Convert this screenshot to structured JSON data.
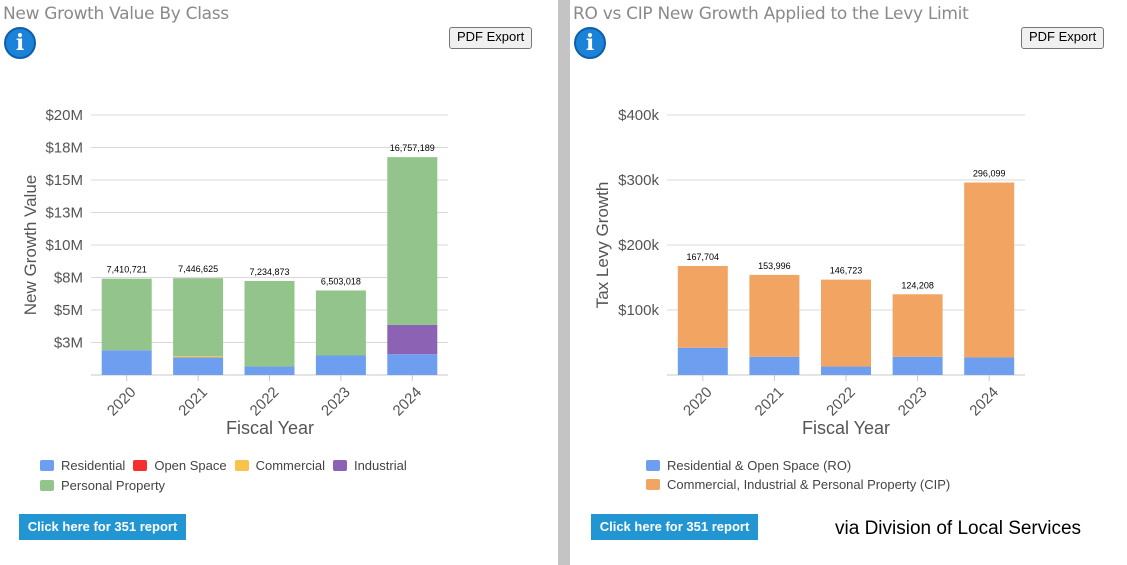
{
  "colors": {
    "residential": "#6e9ef0",
    "open_space": "#f72e2e",
    "commercial": "#f7c34a",
    "industrial": "#8c62b5",
    "personal_property": "#93c48c",
    "ro": "#6e9ef0",
    "cip": "#f2a462",
    "button": "#2196d3"
  },
  "left": {
    "title": "New Growth Value By Class",
    "pdf_label": "PDF Export",
    "report_label": "Click here for 351 report"
  },
  "right": {
    "title": "RO vs CIP New Growth Applied to the Levy Limit",
    "pdf_label": "PDF Export",
    "report_label": "Click here for 351 report"
  },
  "credit": "via Division of Local Services",
  "chart_data": [
    {
      "type": "bar",
      "stacked": true,
      "title": "New Growth Value By Class",
      "xlabel": "Fiscal Year",
      "ylabel": "New Growth Value",
      "ylim": [
        0,
        20000000
      ],
      "yticks": [
        0,
        2500000,
        5000000,
        7500000,
        10000000,
        12500000,
        15000000,
        17500000,
        20000000
      ],
      "ytick_labels": [
        "",
        "$3M",
        "$5M",
        "$8M",
        "$10M",
        "$13M",
        "$15M",
        "$18M",
        "$20M"
      ],
      "categories": [
        "2020",
        "2021",
        "2022",
        "2023",
        "2024"
      ],
      "totals": [
        "7,410,721",
        "7,446,625",
        "7,234,873",
        "6,503,018",
        "16,757,189"
      ],
      "series": [
        {
          "name": "Residential",
          "color_key": "residential",
          "values": [
            1900000,
            1350000,
            650000,
            1500000,
            1600000
          ]
        },
        {
          "name": "Open Space",
          "color_key": "open_space",
          "values": [
            0,
            0,
            0,
            0,
            0
          ]
        },
        {
          "name": "Commercial",
          "color_key": "commercial",
          "values": [
            0,
            100000,
            0,
            0,
            0
          ]
        },
        {
          "name": "Industrial",
          "color_key": "industrial",
          "values": [
            0,
            0,
            0,
            0,
            2250000
          ]
        },
        {
          "name": "Personal Property",
          "color_key": "personal_property",
          "values": [
            5510721,
            5996625,
            6584873,
            5003018,
            12907189
          ]
        }
      ]
    },
    {
      "type": "bar",
      "stacked": true,
      "title": "RO vs CIP New Growth Applied to the Levy Limit",
      "xlabel": "Fiscal Year",
      "ylabel": "Tax Levy Growth",
      "ylim": [
        0,
        400000
      ],
      "yticks": [
        0,
        100000,
        200000,
        300000,
        400000
      ],
      "ytick_labels": [
        "",
        "$100k",
        "$200k",
        "$300k",
        "$400k"
      ],
      "categories": [
        "2020",
        "2021",
        "2022",
        "2023",
        "2024"
      ],
      "totals": [
        "167,704",
        "153,996",
        "146,723",
        "124,208",
        "296,099"
      ],
      "series": [
        {
          "name": "Residential & Open Space (RO)",
          "color_key": "ro",
          "values": [
            42000,
            28000,
            13000,
            28000,
            27000
          ]
        },
        {
          "name": "Commercial, Industrial & Personal Property (CIP)",
          "color_key": "cip",
          "values": [
            125704,
            125996,
            133723,
            96208,
            269099
          ]
        }
      ]
    }
  ]
}
